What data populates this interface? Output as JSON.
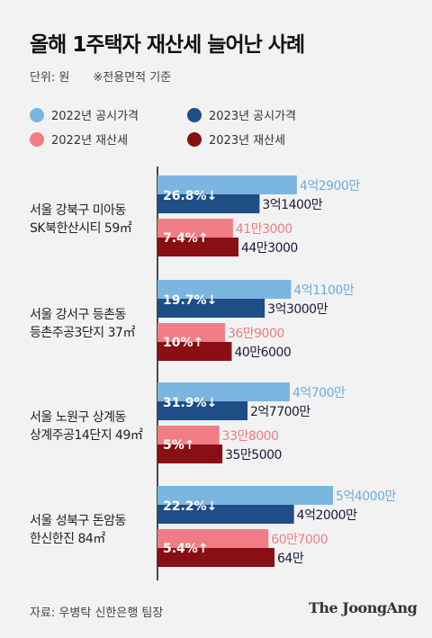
{
  "title": "올해 1주택자 재산세 늘어난 사례",
  "unit_label": "단위: 원",
  "note": "※전용면적 기준",
  "source": "자료: 우병탁 신한은행 팀장",
  "brand": "The JoongAng",
  "colors": {
    "pub2022": "#7ab6df",
    "pub2023": "#1f4d85",
    "tax2022": "#f07d86",
    "tax2023": "#8a0f15",
    "pub2022_text": "#6aaedc",
    "tax2022_text": "#ee7c86",
    "pct_text": "#ffffff",
    "dark_text": "#1b1b3a"
  },
  "chart_data": {
    "type": "bar",
    "orientation": "horizontal",
    "groups": [
      {
        "label_lines": [
          "서울 강북구 미아동",
          "SK북한산시티 59㎡"
        ],
        "pub2022": 429000000,
        "pub2022_label": "4억2900만",
        "pub2023": 314000000,
        "pub2023_label": "3억1400만",
        "pub_change": "26.8%↓",
        "tax2022": 413000,
        "tax2022_label": "41만3000",
        "tax2023": 443000,
        "tax2023_label": "44만3000",
        "tax_change": "7.4%↑"
      },
      {
        "label_lines": [
          "서울 강서구 등촌동",
          "등촌주공3단지 37㎡"
        ],
        "pub2022": 411000000,
        "pub2022_label": "4억1100만",
        "pub2023": 330000000,
        "pub2023_label": "3억3000만",
        "pub_change": "19.7%↓",
        "tax2022": 369000,
        "tax2022_label": "36만9000",
        "tax2023": 406000,
        "tax2023_label": "40만6000",
        "tax_change": "10%↑"
      },
      {
        "label_lines": [
          "서울 노원구 상계동",
          "상계주공14단지 49㎡"
        ],
        "pub2022": 407000000,
        "pub2022_label": "4억700만",
        "pub2023": 277000000,
        "pub2023_label": "2억7700만",
        "pub_change": "31.9%↓",
        "tax2022": 338000,
        "tax2022_label": "33만8000",
        "tax2023": 355000,
        "tax2023_label": "35만5000",
        "tax_change": "5%↑"
      },
      {
        "label_lines": [
          "서울 성북구 돈암동",
          "한신한진 84㎡"
        ],
        "pub2022": 540000000,
        "pub2022_label": "5억4000만",
        "pub2023": 420000000,
        "pub2023_label": "4억2000만",
        "pub_change": "22.2%↓",
        "tax2022": 607000,
        "tax2022_label": "60만7000",
        "tax2023": 640000,
        "tax2023_label": "64만",
        "tax_change": "5.4%↑"
      }
    ],
    "legend": [
      {
        "name": "2022년 공시가격",
        "color": "#7ab6df"
      },
      {
        "name": "2023년 공시가격",
        "color": "#1f4d85"
      },
      {
        "name": "2022년 재산세",
        "color": "#f07d86"
      },
      {
        "name": "2023년 재산세",
        "color": "#8a0f15"
      }
    ]
  }
}
